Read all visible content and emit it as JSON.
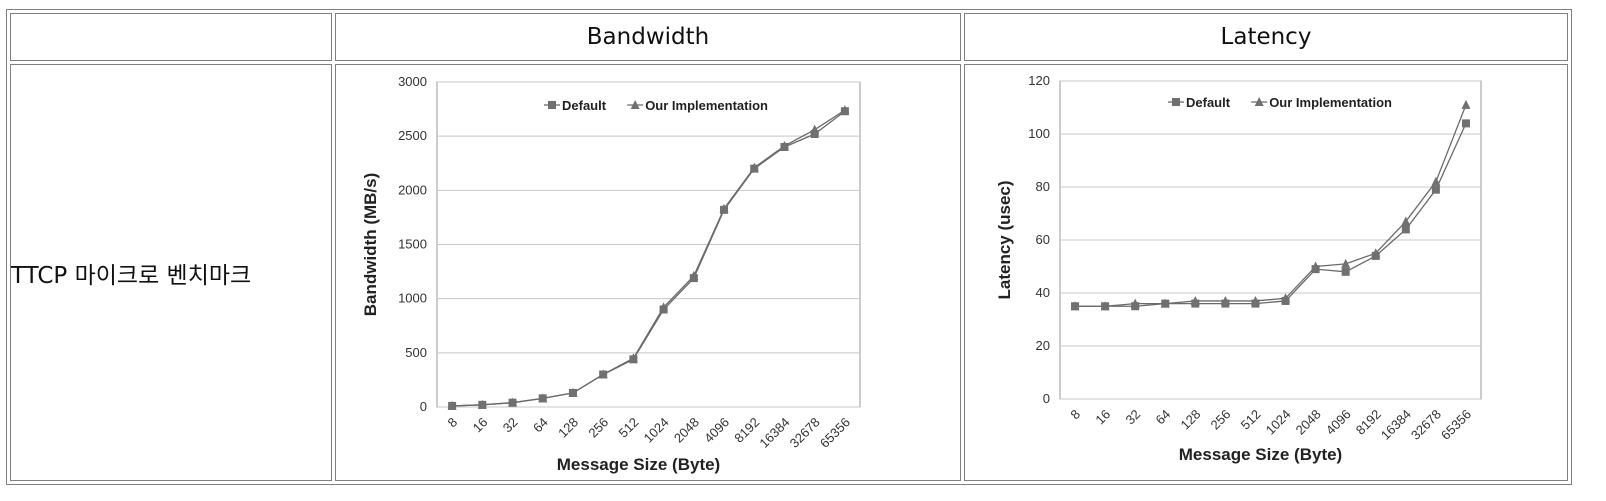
{
  "table": {
    "corner": "",
    "header_bandwidth": "Bandwidth",
    "header_latency": "Latency",
    "row_label": "TTCP 마이크로 벤치마크"
  },
  "chart_data": [
    {
      "type": "line",
      "categories": [
        "8",
        "16",
        "32",
        "64",
        "128",
        "256",
        "512",
        "1024",
        "2048",
        "4096",
        "8192",
        "16384",
        "32678",
        "65356"
      ],
      "series": [
        {
          "name": "Default",
          "marker": "square",
          "values": [
            10,
            20,
            40,
            80,
            130,
            300,
            440,
            900,
            1190,
            1820,
            2200,
            2400,
            2520,
            2730
          ]
        },
        {
          "name": "Our Implementation",
          "marker": "triangle",
          "values": [
            10,
            20,
            40,
            80,
            130,
            300,
            450,
            920,
            1210,
            1830,
            2210,
            2410,
            2560,
            2740
          ]
        }
      ],
      "xlabel": "Message Size (Byte)",
      "ylabel": "Bandwidth (MB/s)",
      "ylim": [
        0,
        3000
      ],
      "yticks": [
        0,
        500,
        1000,
        1500,
        2000,
        2500,
        3000
      ],
      "grid": true,
      "legend": "top",
      "colors": {
        "line": "#6b6b6b",
        "marker": "#707070",
        "grid": "#c8c8c8"
      }
    },
    {
      "type": "line",
      "categories": [
        "8",
        "16",
        "32",
        "64",
        "128",
        "256",
        "512",
        "1024",
        "2048",
        "4096",
        "8192",
        "16384",
        "32678",
        "65356"
      ],
      "series": [
        {
          "name": "Default",
          "marker": "square",
          "values": [
            35,
            35,
            35,
            36,
            36,
            36,
            36,
            37,
            49,
            48,
            54,
            64,
            79,
            104
          ]
        },
        {
          "name": "Our Implementation",
          "marker": "triangle",
          "values": [
            35,
            35,
            36,
            36,
            37,
            37,
            37,
            38,
            50,
            51,
            55,
            67,
            82,
            111
          ]
        }
      ],
      "xlabel": "Message Size (Byte)",
      "ylabel": "Latency (usec)",
      "ylim": [
        0,
        120
      ],
      "yticks": [
        0,
        20,
        40,
        60,
        80,
        100,
        120
      ],
      "grid": true,
      "legend": "top",
      "colors": {
        "line": "#6b6b6b",
        "marker": "#707070",
        "grid": "#c8c8c8"
      }
    }
  ]
}
